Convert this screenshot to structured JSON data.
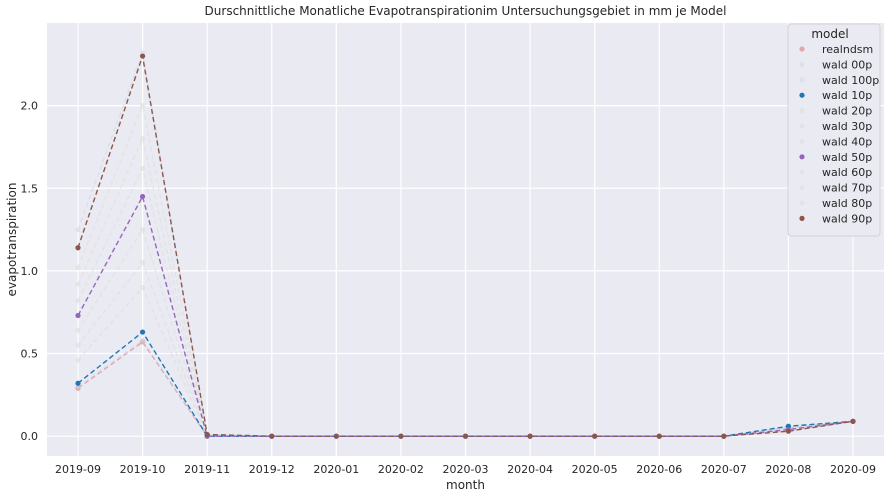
{
  "chart_data": {
    "type": "line",
    "title": "Durschnittliche Monatliche Evapotranspirationim Untersuchungsgebiet in mm je Model",
    "xlabel": "month",
    "ylabel": "evapotranspiration",
    "ylim": [
      -0.12,
      2.5
    ],
    "yticks": [
      "0.0",
      "0.5",
      "1.0",
      "1.5",
      "2.0"
    ],
    "categories": [
      "2019-09",
      "2019-10",
      "2019-11",
      "2019-12",
      "2020-01",
      "2020-02",
      "2020-03",
      "2020-04",
      "2020-05",
      "2020-06",
      "2020-07",
      "2020-08",
      "2020-09"
    ],
    "grid": true,
    "legend_title": "model",
    "legend_position": "top-right",
    "series": [
      {
        "name": "realndsm",
        "color": "#d62728",
        "alpha": 0.35,
        "values": [
          0.29,
          0.57,
          0.0,
          0.0,
          0.0,
          0.0,
          0.0,
          0.0,
          0.0,
          0.0,
          0.0,
          0.05,
          0.09
        ]
      },
      {
        "name": "wald 00p",
        "color": "#c7d5ea",
        "alpha": 0.5,
        "values": [
          0.3,
          0.58,
          0.0,
          0.0,
          0.0,
          0.0,
          0.0,
          0.0,
          0.0,
          0.0,
          0.0,
          0.05,
          0.09
        ]
      },
      {
        "name": "wald 100p",
        "color": "#c7d5ea",
        "alpha": 0.5,
        "values": [
          1.25,
          2.32,
          0.01,
          0.0,
          0.0,
          0.0,
          0.0,
          0.0,
          0.0,
          0.0,
          0.0,
          0.03,
          0.09
        ]
      },
      {
        "name": "wald 10p",
        "color": "#1f77b4",
        "alpha": 1,
        "values": [
          0.32,
          0.63,
          0.0,
          0.0,
          0.0,
          0.0,
          0.0,
          0.0,
          0.0,
          0.0,
          0.0,
          0.06,
          0.09
        ]
      },
      {
        "name": "wald 20p",
        "color": "#dddddd",
        "alpha": 0.6,
        "values": [
          0.46,
          0.9,
          0.0,
          0.0,
          0.0,
          0.0,
          0.0,
          0.0,
          0.0,
          0.0,
          0.0,
          0.05,
          0.09
        ]
      },
      {
        "name": "wald 30p",
        "color": "#dddddd",
        "alpha": 0.6,
        "values": [
          0.55,
          1.05,
          0.0,
          0.0,
          0.0,
          0.0,
          0.0,
          0.0,
          0.0,
          0.0,
          0.0,
          0.05,
          0.09
        ]
      },
      {
        "name": "wald 40p",
        "color": "#dddddd",
        "alpha": 0.6,
        "values": [
          0.64,
          1.25,
          0.0,
          0.0,
          0.0,
          0.0,
          0.0,
          0.0,
          0.0,
          0.0,
          0.0,
          0.04,
          0.09
        ]
      },
      {
        "name": "wald 50p",
        "color": "#9467bd",
        "alpha": 1,
        "values": [
          0.73,
          1.45,
          0.0,
          0.0,
          0.0,
          0.0,
          0.0,
          0.0,
          0.0,
          0.0,
          0.0,
          0.04,
          0.09
        ]
      },
      {
        "name": "wald 60p",
        "color": "#dddddd",
        "alpha": 0.6,
        "values": [
          0.82,
          1.62,
          0.0,
          0.0,
          0.0,
          0.0,
          0.0,
          0.0,
          0.0,
          0.0,
          0.0,
          0.04,
          0.09
        ]
      },
      {
        "name": "wald 70p",
        "color": "#dddddd",
        "alpha": 0.6,
        "values": [
          0.92,
          1.8,
          0.0,
          0.0,
          0.0,
          0.0,
          0.0,
          0.0,
          0.0,
          0.0,
          0.0,
          0.04,
          0.09
        ]
      },
      {
        "name": "wald 80p",
        "color": "#dddddd",
        "alpha": 0.6,
        "values": [
          1.02,
          2.0,
          0.0,
          0.0,
          0.0,
          0.0,
          0.0,
          0.0,
          0.0,
          0.0,
          0.0,
          0.03,
          0.09
        ]
      },
      {
        "name": "wald 90p",
        "color": "#8c564b",
        "alpha": 1,
        "values": [
          1.14,
          2.3,
          0.01,
          0.0,
          0.0,
          0.0,
          0.0,
          0.0,
          0.0,
          0.0,
          0.0,
          0.03,
          0.09
        ]
      }
    ]
  }
}
